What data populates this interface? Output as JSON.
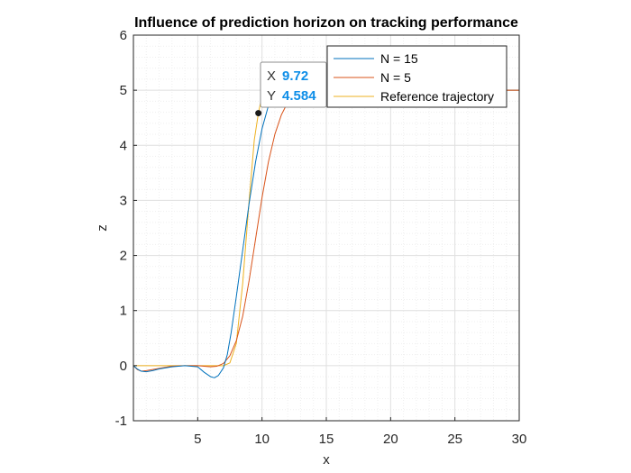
{
  "chart_data": {
    "type": "line",
    "title": "Influence of prediction horizon on tracking performance",
    "xlabel": "x",
    "ylabel": "z",
    "xlim": [
      0,
      30
    ],
    "ylim": [
      -1,
      6
    ],
    "xticks": [
      5,
      10,
      15,
      20,
      25,
      30
    ],
    "xtick_labels": [
      "5",
      "10",
      "15",
      "20",
      "25",
      "30"
    ],
    "yticks": [
      -1,
      0,
      1,
      2,
      3,
      4,
      5,
      6
    ],
    "ytick_labels": [
      "-1",
      "0",
      "1",
      "2",
      "3",
      "4",
      "5",
      "6"
    ],
    "grid": true,
    "minor_grid": true,
    "legend_position": "top-right",
    "series": [
      {
        "name": "N = 15",
        "color": "#0072bd",
        "x": [
          0,
          0.3,
          0.6,
          1.0,
          1.5,
          2.0,
          3.0,
          4.0,
          5.0,
          5.5,
          6.0,
          6.3,
          6.6,
          7.0,
          7.3,
          7.6,
          8.0,
          8.5,
          9.0,
          9.5,
          10.0,
          10.5,
          11.0,
          11.5,
          12.0,
          12.5,
          13.0
        ],
        "y": [
          0,
          -0.06,
          -0.1,
          -0.11,
          -0.09,
          -0.06,
          -0.02,
          0,
          -0.02,
          -0.12,
          -0.2,
          -0.22,
          -0.18,
          -0.04,
          0.2,
          0.6,
          1.25,
          2.1,
          2.95,
          3.7,
          4.3,
          4.72,
          4.95,
          5.05,
          5.07,
          5.04,
          5.0
        ]
      },
      {
        "name": "N = 5",
        "color": "#d95319",
        "x": [
          0,
          0.3,
          0.6,
          1.0,
          1.5,
          2.0,
          3.0,
          4.0,
          5.0,
          6.0,
          6.5,
          7.0,
          7.5,
          8.0,
          8.5,
          9.0,
          9.5,
          10.0,
          10.5,
          11.0,
          11.5,
          12.0,
          12.5,
          13.0,
          13.5
        ],
        "y": [
          0,
          -0.07,
          -0.1,
          -0.09,
          -0.07,
          -0.05,
          -0.01,
          0,
          0,
          -0.02,
          -0.01,
          0.04,
          0.18,
          0.45,
          0.9,
          1.55,
          2.3,
          3.05,
          3.7,
          4.2,
          4.55,
          4.78,
          4.92,
          4.98,
          5.0
        ]
      },
      {
        "name": "Reference trajectory",
        "color": "#edb120",
        "x": [
          0,
          7.0,
          7.5,
          8.0,
          8.5,
          9.0,
          9.4,
          9.72,
          10.0,
          10.3,
          11.0,
          12.0
        ],
        "y": [
          0,
          0,
          0.05,
          0.4,
          1.5,
          3.0,
          4.1,
          4.584,
          4.9,
          5.0,
          5.0,
          5.0
        ]
      }
    ]
  },
  "datatip": {
    "x_key": "X",
    "x_value": "9.72",
    "y_key": "Y",
    "y_value": "4.584",
    "point": {
      "x": 9.72,
      "y": 4.584
    }
  },
  "colors": {
    "axis": "#262626",
    "grid_major": "#dfdfdf",
    "grid_minor": "#efefef",
    "tip_value": "#0e8ee8"
  }
}
